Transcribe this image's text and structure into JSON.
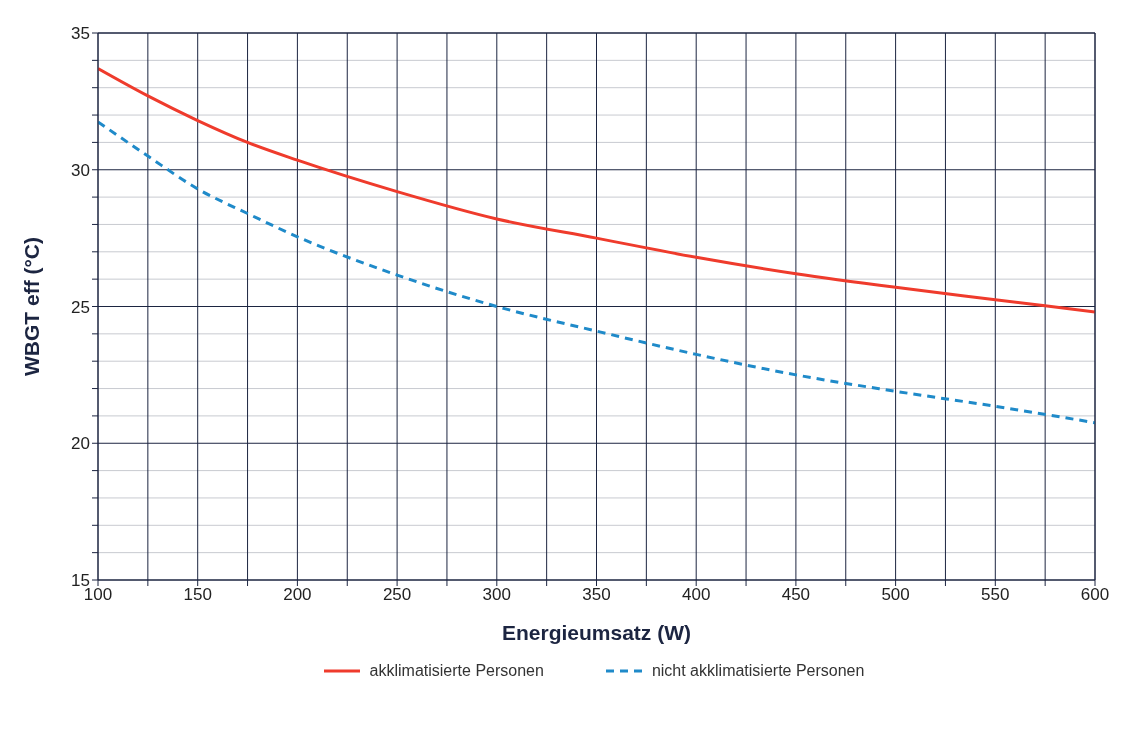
{
  "chart_data": {
    "type": "line",
    "xlabel": "Energieumsatz (W)",
    "ylabel": "WBGT eff (°C)",
    "x": [
      100,
      125,
      150,
      175,
      200,
      250,
      300,
      350,
      400,
      450,
      500,
      550,
      600
    ],
    "series": [
      {
        "name": "akklimatisierte Personen",
        "color": "#ef3b2c",
        "line_style": "solid",
        "values": [
          33.7,
          32.7,
          31.8,
          31.0,
          30.35,
          29.2,
          28.2,
          27.5,
          26.8,
          26.2,
          25.7,
          25.25,
          24.8
        ]
      },
      {
        "name": "nicht akklimatisierte Personen",
        "color": "#1f8ac9",
        "line_style": "dashed",
        "values": [
          31.75,
          30.5,
          29.3,
          28.4,
          27.55,
          26.15,
          25.0,
          24.1,
          23.25,
          22.5,
          21.9,
          21.35,
          20.75
        ]
      }
    ],
    "xlim": [
      100,
      600
    ],
    "xticks": [
      100,
      {
        "value": 125,
        "label": null
      },
      150,
      {
        "value": 175,
        "label": null
      },
      200,
      {
        "value": 225,
        "label": null
      },
      250,
      {
        "value": 275,
        "label": null
      },
      300,
      {
        "value": 325,
        "label": null
      },
      350,
      {
        "value": 375,
        "label": null
      },
      400,
      {
        "value": 425,
        "label": null
      },
      450,
      {
        "value": 475,
        "label": null
      },
      500,
      {
        "value": 525,
        "label": null
      },
      550,
      {
        "value": 575,
        "label": null
      },
      600
    ],
    "ylim": [
      15,
      35
    ],
    "yticks": [
      15,
      {
        "value": 16,
        "label": null
      },
      {
        "value": 17,
        "label": null
      },
      {
        "value": 18,
        "label": null
      },
      {
        "value": 19,
        "label": null
      },
      20,
      {
        "value": 21,
        "label": null
      },
      {
        "value": 22,
        "label": null
      },
      {
        "value": 23,
        "label": null
      },
      {
        "value": 24,
        "label": null
      },
      25,
      {
        "value": 26,
        "label": null
      },
      {
        "value": 27,
        "label": null
      },
      {
        "value": 28,
        "label": null
      },
      {
        "value": 29,
        "label": null
      },
      30,
      {
        "value": 31,
        "label": null
      },
      {
        "value": 32,
        "label": null
      },
      {
        "value": 33,
        "label": null
      },
      {
        "value": 34,
        "label": null
      },
      35
    ],
    "grid": true,
    "legend": "bottom",
    "marker": "none"
  }
}
